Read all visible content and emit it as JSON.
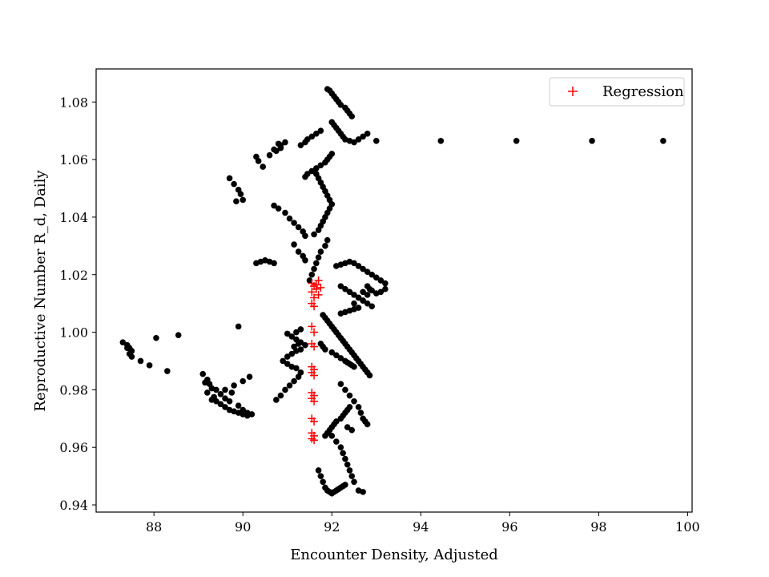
{
  "chart_data": {
    "type": "scatter",
    "title": "",
    "xlabel": "Encounter Density, Adjusted",
    "ylabel": "Reproductive Number R_d, Daily",
    "xlim": [
      86.7,
      100.1
    ],
    "ylim": [
      0.9375,
      1.0915
    ],
    "xticks": [
      88,
      90,
      92,
      94,
      96,
      98,
      100
    ],
    "yticks": [
      0.94,
      0.96,
      0.98,
      1.0,
      1.02,
      1.04,
      1.06,
      1.08
    ],
    "xtick_labels": [
      "88",
      "90",
      "92",
      "94",
      "96",
      "98",
      "100"
    ],
    "ytick_labels": [
      "0.94",
      "0.96",
      "0.98",
      "1.00",
      "1.02",
      "1.04",
      "1.06",
      "1.08"
    ],
    "grid": false,
    "legend": {
      "position": "top-right",
      "entries": [
        "Regression"
      ]
    },
    "colors": {
      "observed": "#000000",
      "regression": "#ff0000"
    },
    "series": [
      {
        "marker": "dot",
        "x": [
          87.3,
          87.4,
          87.45,
          87.5,
          87.45,
          87.5,
          87.4,
          87.7,
          87.9,
          88.05,
          88.3,
          88.55,
          89.1,
          89.2,
          89.15,
          89.25,
          89.3,
          89.2,
          89.35,
          89.3,
          89.4,
          89.5,
          89.6,
          89.7,
          89.8,
          89.9,
          90.0,
          90.1,
          90.2,
          90.1,
          90.0,
          89.9,
          89.7,
          89.6,
          89.5,
          89.4,
          89.75,
          89.6,
          89.8,
          90.0,
          90.15,
          89.9,
          90.3,
          90.4,
          90.5,
          90.6,
          90.7,
          89.7,
          89.8,
          89.9,
          89.95,
          90.0,
          89.85,
          90.3,
          90.35,
          90.45,
          90.6,
          90.7,
          90.8,
          90.85,
          90.95,
          90.85,
          90.75,
          90.7,
          90.8,
          90.95,
          91.05,
          91.15,
          91.25,
          91.35,
          91.4,
          91.15,
          91.25,
          91.35,
          91.4,
          90.75,
          90.85,
          90.95,
          91.05,
          91.15,
          91.25,
          91.3,
          91.2,
          91.1,
          91.0,
          90.9,
          91.0,
          91.1,
          91.2,
          91.3,
          91.4,
          91.3,
          91.2,
          91.1,
          91.0,
          91.2,
          91.3,
          91.25,
          91.15,
          91.3,
          91.4,
          91.45,
          91.55,
          91.65,
          91.75,
          91.4,
          91.45,
          91.55,
          91.65,
          91.75,
          91.85,
          91.9,
          91.95,
          92.0,
          91.5,
          91.55,
          91.6,
          91.65,
          91.7,
          91.75,
          91.85,
          91.9,
          91.6,
          91.7,
          91.75,
          91.8,
          91.85,
          91.9,
          91.95,
          92.0,
          91.95,
          91.9,
          91.85,
          91.8,
          91.75,
          91.7,
          91.65,
          91.9,
          91.95,
          92.0,
          92.05,
          92.1,
          92.15,
          92.2,
          92.3,
          92.35,
          92.4,
          92.45,
          92.0,
          92.05,
          92.1,
          92.15,
          92.2,
          92.25,
          92.3,
          92.4,
          92.5,
          92.6,
          92.7,
          92.8,
          92.1,
          92.2,
          92.3,
          92.4,
          92.5,
          92.6,
          92.7,
          92.8,
          92.9,
          93.0,
          93.1,
          93.2,
          92.2,
          92.3,
          92.4,
          92.5,
          92.6,
          92.7,
          92.8,
          92.9,
          92.6,
          92.5,
          92.4,
          92.3,
          92.2,
          91.8,
          91.85,
          91.9,
          91.95,
          92.0,
          92.05,
          92.1,
          92.15,
          92.2,
          92.25,
          92.3,
          92.35,
          92.4,
          92.45,
          92.5,
          92.55,
          92.6,
          92.65,
          92.7,
          92.75,
          92.8,
          92.85,
          91.75,
          91.8,
          91.85,
          92.0,
          92.1,
          92.2,
          92.3,
          92.35,
          92.4,
          92.45,
          92.5,
          92.5,
          92.6,
          92.7,
          92.8,
          92.85,
          93.0,
          93.1,
          93.2,
          92.9,
          92.8,
          92.7,
          92.2,
          92.3,
          92.4,
          92.5,
          92.6,
          92.65,
          92.7,
          92.75,
          92.8,
          92.35,
          92.45,
          92.0,
          92.1,
          92.2,
          92.25,
          92.3,
          92.35,
          92.4,
          92.45,
          92.5,
          91.7,
          91.75,
          91.8,
          91.85,
          91.9,
          91.95,
          92.0,
          92.05,
          92.1,
          92.15,
          92.2,
          92.25,
          92.3,
          91.85,
          91.9,
          91.95,
          92.0,
          92.05,
          92.1,
          92.2,
          92.25,
          92.3,
          92.35,
          92.4,
          92.6,
          92.7,
          93.0,
          94.45,
          96.15,
          97.85,
          99.45
        ],
        "y": [
          0.9965,
          0.9955,
          0.9945,
          0.9935,
          0.9925,
          0.9915,
          0.9945,
          0.99,
          0.9885,
          0.998,
          0.9865,
          0.999,
          0.9855,
          0.9835,
          0.9825,
          0.982,
          0.9805,
          0.979,
          0.9775,
          0.9765,
          0.976,
          0.975,
          0.974,
          0.973,
          0.9725,
          0.972,
          0.9715,
          0.971,
          0.9715,
          0.972,
          0.973,
          0.9745,
          0.976,
          0.977,
          0.9785,
          0.98,
          0.979,
          0.98,
          0.9815,
          0.983,
          0.9845,
          1.002,
          1.024,
          1.0245,
          1.025,
          1.0245,
          1.024,
          1.0535,
          1.0515,
          1.0495,
          1.048,
          1.046,
          1.0455,
          1.061,
          1.0595,
          1.0575,
          1.0615,
          1.0635,
          1.0655,
          1.064,
          1.066,
          1.065,
          1.063,
          1.044,
          1.043,
          1.0415,
          1.0395,
          1.038,
          1.0365,
          1.035,
          1.0335,
          1.0305,
          1.028,
          1.0265,
          1.025,
          0.9765,
          0.978,
          0.98,
          0.9815,
          0.983,
          0.9845,
          0.986,
          0.9875,
          0.988,
          0.989,
          0.99,
          0.9915,
          0.9925,
          0.9935,
          0.994,
          0.9955,
          0.9965,
          0.9975,
          0.9985,
          0.9995,
          1.0,
          1.001,
          0.996,
          0.995,
          1.065,
          1.066,
          1.067,
          1.068,
          1.069,
          1.07,
          1.054,
          1.055,
          1.056,
          1.057,
          1.058,
          1.059,
          1.06,
          1.061,
          1.062,
          1.018,
          1.02,
          1.022,
          1.024,
          1.026,
          1.028,
          1.03,
          1.032,
          1.034,
          1.0355,
          1.037,
          1.0385,
          1.04,
          1.0415,
          1.043,
          1.0445,
          1.046,
          1.0475,
          1.049,
          1.0505,
          1.052,
          1.0535,
          1.055,
          1.0845,
          1.084,
          1.083,
          1.082,
          1.081,
          1.08,
          1.079,
          1.078,
          1.077,
          1.076,
          1.075,
          1.073,
          1.072,
          1.071,
          1.07,
          1.069,
          1.068,
          1.067,
          1.0665,
          1.066,
          1.067,
          1.068,
          1.069,
          1.023,
          1.0235,
          1.024,
          1.0245,
          1.024,
          1.023,
          1.022,
          1.021,
          1.02,
          1.019,
          1.018,
          1.017,
          1.016,
          1.015,
          1.014,
          1.013,
          1.012,
          1.011,
          1.01,
          1.009,
          1.0085,
          1.008,
          1.0075,
          1.007,
          1.0065,
          1.006,
          1.005,
          1.004,
          1.003,
          1.002,
          1.001,
          1.0,
          0.999,
          0.998,
          0.997,
          0.996,
          0.995,
          0.994,
          0.993,
          0.992,
          0.991,
          0.99,
          0.989,
          0.988,
          0.987,
          0.986,
          0.985,
          0.996,
          0.995,
          0.994,
          0.993,
          0.992,
          0.991,
          0.99,
          0.9895,
          0.989,
          0.9885,
          0.988,
          1.01,
          1.012,
          1.014,
          1.016,
          1.015,
          1.0135,
          1.014,
          1.015,
          1.0145,
          1.013,
          1.011,
          0.982,
          0.98,
          0.978,
          0.976,
          0.974,
          0.972,
          0.97,
          0.969,
          0.968,
          0.967,
          0.966,
          0.964,
          0.962,
          0.96,
          0.958,
          0.956,
          0.954,
          0.952,
          0.95,
          0.948,
          0.952,
          0.95,
          0.948,
          0.946,
          0.945,
          0.9445,
          0.944,
          0.9445,
          0.945,
          0.9455,
          0.946,
          0.9465,
          0.947,
          0.964,
          0.965,
          0.966,
          0.967,
          0.968,
          0.969,
          0.97,
          0.971,
          0.972,
          0.973,
          0.974,
          0.945,
          0.9445,
          1.0665,
          1.0665,
          1.0665,
          1.0665,
          1.0665
        ]
      },
      {
        "name": "Regression",
        "marker": "plus",
        "x": [
          91.55,
          91.6,
          91.65,
          91.55,
          91.6,
          91.7,
          91.55,
          91.6,
          91.75,
          91.55,
          91.6,
          91.55,
          91.6,
          91.55,
          91.6,
          91.55,
          91.6,
          91.55,
          91.6,
          91.55,
          91.6,
          91.55,
          91.6,
          91.55,
          91.6,
          91.55,
          91.6,
          91.65,
          91.7
        ],
        "y": [
          1.017,
          1.016,
          1.015,
          1.014,
          1.012,
          1.013,
          1.01,
          1.009,
          1.0155,
          1.002,
          1.0,
          0.996,
          0.995,
          0.988,
          0.987,
          0.986,
          0.985,
          0.979,
          0.978,
          0.977,
          0.976,
          0.97,
          0.969,
          0.965,
          0.964,
          0.963,
          0.9625,
          1.0165,
          1.018
        ]
      }
    ]
  }
}
